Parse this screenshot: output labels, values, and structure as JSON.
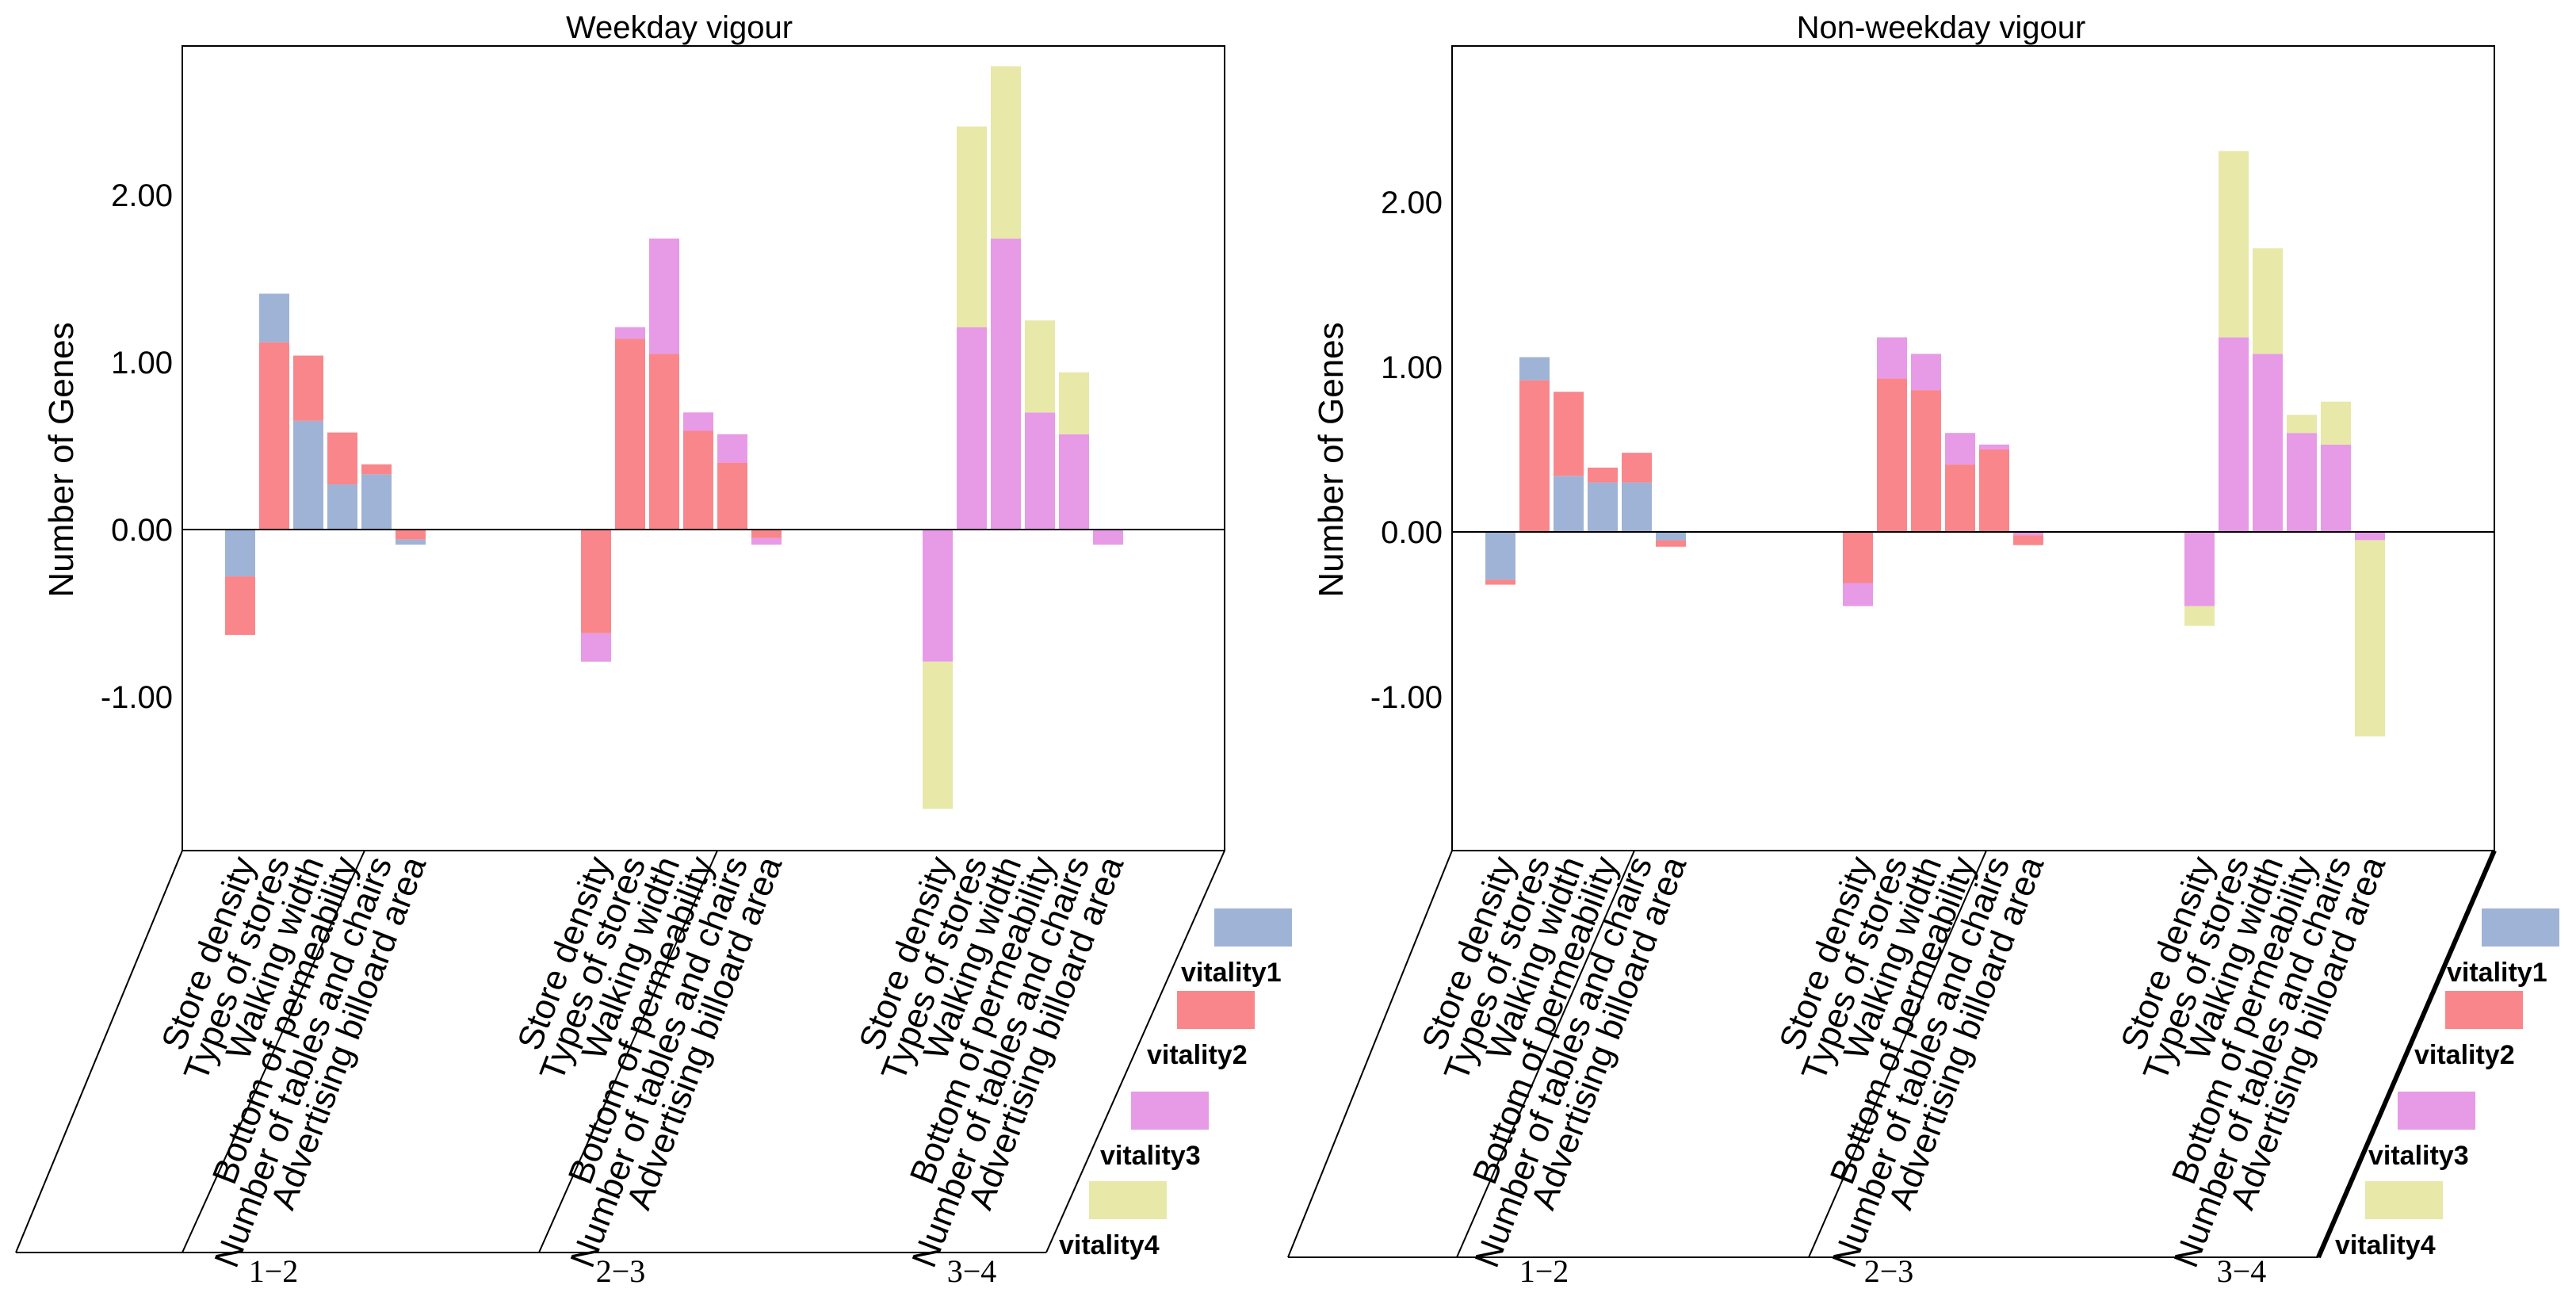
{
  "chart_data": [
    {
      "type": "bar",
      "stacked": true,
      "title": "Weekday vigour",
      "xlabel": "",
      "ylabel": "Number of Genes",
      "ylim": [
        -2.0,
        2.9
      ],
      "yticks": [
        "2.00",
        "1.00",
        "0.00",
        "-1.00"
      ],
      "legend_position": "right",
      "groups": [
        {
          "label": "1−2",
          "categories": [
            "Store density",
            "Types of stores",
            "Walking width",
            "Bottom of  permeability",
            "Number of tables and chairs",
            "Advertising billoard area"
          ],
          "stacks": [
            [
              {
                "s": "vitality1",
                "from": 0,
                "to": -0.28
              },
              {
                "s": "vitality2",
                "from": -0.28,
                "to": -0.63
              }
            ],
            [
              {
                "s": "vitality2",
                "from": 0,
                "to": 1.12
              },
              {
                "s": "vitality1",
                "from": 1.12,
                "to": 1.41
              }
            ],
            [
              {
                "s": "vitality1",
                "from": 0,
                "to": 0.65
              },
              {
                "s": "vitality2",
                "from": 0.65,
                "to": 1.04
              }
            ],
            [
              {
                "s": "vitality1",
                "from": 0,
                "to": 0.27
              },
              {
                "s": "vitality2",
                "from": 0.27,
                "to": 0.58
              }
            ],
            [
              {
                "s": "vitality1",
                "from": 0,
                "to": 0.33
              },
              {
                "s": "vitality2",
                "from": 0.33,
                "to": 0.39
              }
            ],
            [
              {
                "s": "vitality2",
                "from": 0,
                "to": -0.06
              },
              {
                "s": "vitality1",
                "from": -0.06,
                "to": -0.09
              }
            ]
          ]
        },
        {
          "label": "2−3",
          "categories": [
            "Store density",
            "Types of stores",
            "Walking width",
            "Bottom of  permeability",
            "Number of tables and chairs",
            "Advertising billoard area"
          ],
          "stacks": [
            [
              {
                "s": "vitality2",
                "from": 0,
                "to": -0.62
              },
              {
                "s": "vitality3",
                "from": -0.62,
                "to": -0.79
              }
            ],
            [
              {
                "s": "vitality2",
                "from": 0,
                "to": 1.14
              },
              {
                "s": "vitality3",
                "from": 1.14,
                "to": 1.21
              }
            ],
            [
              {
                "s": "vitality2",
                "from": 0,
                "to": 1.05
              },
              {
                "s": "vitality3",
                "from": 1.05,
                "to": 1.74
              }
            ],
            [
              {
                "s": "vitality2",
                "from": 0,
                "to": 0.59
              },
              {
                "s": "vitality3",
                "from": 0.59,
                "to": 0.7
              }
            ],
            [
              {
                "s": "vitality2",
                "from": 0,
                "to": 0.4
              },
              {
                "s": "vitality3",
                "from": 0.4,
                "to": 0.57
              }
            ],
            [
              {
                "s": "vitality2",
                "from": 0,
                "to": -0.05
              },
              {
                "s": "vitality3",
                "from": -0.05,
                "to": -0.09
              }
            ]
          ]
        },
        {
          "label": "3−4",
          "categories": [
            "Store density",
            "Types of stores",
            "Walking width",
            "Bottom of  permeability",
            "Number of tables and chairs",
            "Advertising billoard area"
          ],
          "stacks": [
            [
              {
                "s": "vitality3",
                "from": 0,
                "to": -0.79
              },
              {
                "s": "vitality4",
                "from": -0.79,
                "to": -1.67
              }
            ],
            [
              {
                "s": "vitality3",
                "from": 0,
                "to": 1.21
              },
              {
                "s": "vitality4",
                "from": 1.21,
                "to": 2.41
              }
            ],
            [
              {
                "s": "vitality3",
                "from": 0,
                "to": 1.74
              },
              {
                "s": "vitality4",
                "from": 1.74,
                "to": 2.77
              }
            ],
            [
              {
                "s": "vitality3",
                "from": 0,
                "to": 0.7
              },
              {
                "s": "vitality4",
                "from": 0.7,
                "to": 1.25
              }
            ],
            [
              {
                "s": "vitality3",
                "from": 0,
                "to": 0.57
              },
              {
                "s": "vitality4",
                "from": 0.57,
                "to": 0.94
              }
            ],
            [
              {
                "s": "vitality3",
                "from": 0,
                "to": -0.09
              }
            ]
          ]
        }
      ]
    },
    {
      "type": "bar",
      "stacked": true,
      "title": "Non-weekday vigour",
      "xlabel": "",
      "ylabel": "Number of Genes",
      "ylim": [
        -2.0,
        2.9
      ],
      "yticks": [
        "2.00",
        "1.00",
        "0.00",
        "-1.00"
      ],
      "legend_position": "right",
      "groups": [
        {
          "label": "1−2",
          "categories": [
            "Store density",
            "Types of stores",
            "Walking width",
            "Bottom of  permeability",
            "Number of tables and chairs",
            "Advertising billoard area"
          ],
          "stacks": [
            [
              {
                "s": "vitality1",
                "from": 0,
                "to": -0.29
              },
              {
                "s": "vitality2",
                "from": -0.29,
                "to": -0.32
              }
            ],
            [
              {
                "s": "vitality2",
                "from": 0,
                "to": 0.92
              },
              {
                "s": "vitality1",
                "from": 0.92,
                "to": 1.06
              }
            ],
            [
              {
                "s": "vitality1",
                "from": 0,
                "to": 0.34
              },
              {
                "s": "vitality2",
                "from": 0.34,
                "to": 0.85
              }
            ],
            [
              {
                "s": "vitality1",
                "from": 0,
                "to": 0.3
              },
              {
                "s": "vitality2",
                "from": 0.3,
                "to": 0.39
              }
            ],
            [
              {
                "s": "vitality1",
                "from": 0,
                "to": 0.3
              },
              {
                "s": "vitality2",
                "from": 0.3,
                "to": 0.48
              }
            ],
            [
              {
                "s": "vitality1",
                "from": 0,
                "to": -0.05
              },
              {
                "s": "vitality2",
                "from": -0.05,
                "to": -0.09
              }
            ]
          ]
        },
        {
          "label": "2−3",
          "categories": [
            "Store density",
            "Types of stores",
            "Walking width",
            "Bottom of  permeability",
            "Number of tables and chairs",
            "Advertising billoard area"
          ],
          "stacks": [
            [
              {
                "s": "vitality2",
                "from": 0,
                "to": -0.31
              },
              {
                "s": "vitality3",
                "from": -0.31,
                "to": -0.45
              }
            ],
            [
              {
                "s": "vitality2",
                "from": 0,
                "to": 0.93
              },
              {
                "s": "vitality3",
                "from": 0.93,
                "to": 1.18
              }
            ],
            [
              {
                "s": "vitality2",
                "from": 0,
                "to": 0.86
              },
              {
                "s": "vitality3",
                "from": 0.86,
                "to": 1.08
              }
            ],
            [
              {
                "s": "vitality2",
                "from": 0,
                "to": 0.41
              },
              {
                "s": "vitality3",
                "from": 0.41,
                "to": 0.6
              }
            ],
            [
              {
                "s": "vitality2",
                "from": 0,
                "to": 0.5
              },
              {
                "s": "vitality3",
                "from": 0.5,
                "to": 0.53
              }
            ],
            [
              {
                "s": "vitality3",
                "from": 0,
                "to": -0.02
              },
              {
                "s": "vitality2",
                "from": -0.02,
                "to": -0.08
              }
            ]
          ]
        },
        {
          "label": "3−4",
          "categories": [
            "Store density",
            "Types of stores",
            "Walking width",
            "Bottom of  permeability",
            "Number of tables and chairs",
            "Advertising billoard area"
          ],
          "stacks": [
            [
              {
                "s": "vitality3",
                "from": 0,
                "to": -0.45
              },
              {
                "s": "vitality4",
                "from": -0.45,
                "to": -0.57
              }
            ],
            [
              {
                "s": "vitality3",
                "from": 0,
                "to": 1.18
              },
              {
                "s": "vitality4",
                "from": 1.18,
                "to": 2.31
              }
            ],
            [
              {
                "s": "vitality3",
                "from": 0,
                "to": 1.08
              },
              {
                "s": "vitality4",
                "from": 1.08,
                "to": 1.72
              }
            ],
            [
              {
                "s": "vitality3",
                "from": 0,
                "to": 0.6
              },
              {
                "s": "vitality4",
                "from": 0.6,
                "to": 0.71
              }
            ],
            [
              {
                "s": "vitality3",
                "from": 0,
                "to": 0.53
              },
              {
                "s": "vitality4",
                "from": 0.53,
                "to": 0.79
              }
            ],
            [
              {
                "s": "vitality3",
                "from": 0,
                "to": -0.05
              },
              {
                "s": "vitality4",
                "from": -0.05,
                "to": -1.24
              }
            ]
          ]
        }
      ]
    }
  ],
  "legend": [
    {
      "key": "vitality1",
      "label": "vitality1",
      "color": "#9fb3d6"
    },
    {
      "key": "vitality2",
      "label": "vitality2",
      "color": "#f9868a"
    },
    {
      "key": "vitality3",
      "label": "vitality3",
      "color": "#e79ae6"
    },
    {
      "key": "vitality4",
      "label": "vitality4",
      "color": "#e8e8a9"
    }
  ]
}
